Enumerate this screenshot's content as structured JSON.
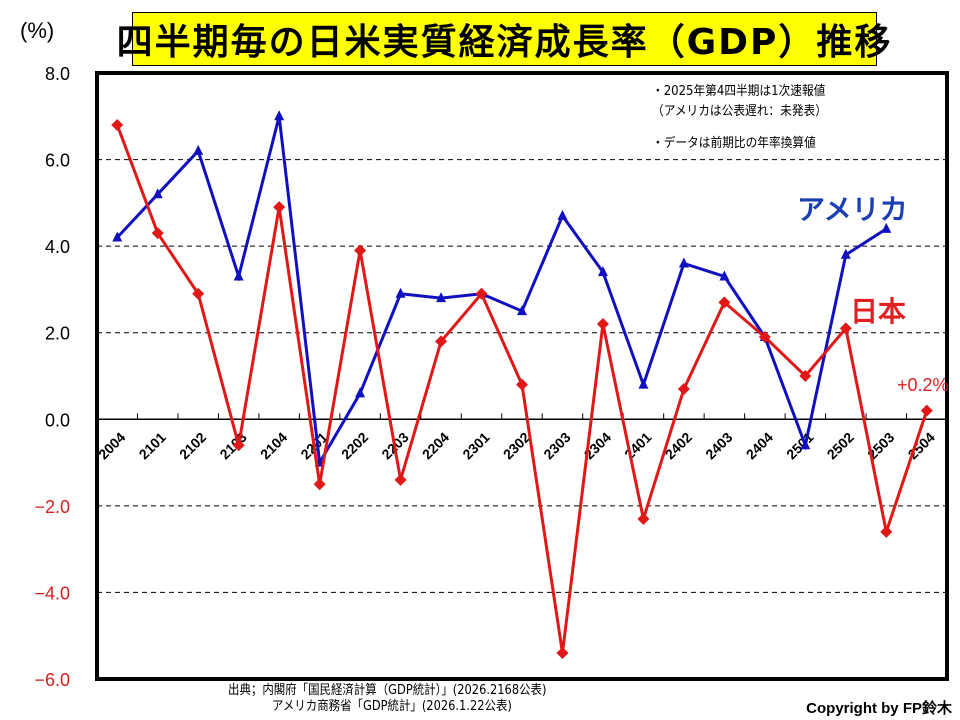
{
  "chart_data": {
    "type": "line",
    "title": "四半期毎の日米実質経済成長率（GDP）推移",
    "ylabel": "(%)",
    "xlabel": "",
    "ylim": [
      -6.0,
      8.0
    ],
    "yticks": [
      "8.0",
      "6.0",
      "4.0",
      "2.0",
      "0.0",
      "−2.0",
      "−4.0",
      "−6.0"
    ],
    "ytick_values": [
      8,
      6,
      4,
      2,
      0,
      -2,
      -4,
      -6
    ],
    "grid": "horizontal-dashed",
    "categories": [
      "2004",
      "2101",
      "2102",
      "2103",
      "2104",
      "2201",
      "2202",
      "2203",
      "2204",
      "2301",
      "2302",
      "2303",
      "2304",
      "2401",
      "2402",
      "2403",
      "2404",
      "2501",
      "2502",
      "2503",
      "2504"
    ],
    "series": [
      {
        "name": "アメリカ",
        "color": "#1010c0",
        "marker": "triangle",
        "values": [
          4.2,
          5.2,
          6.2,
          3.3,
          7.0,
          -1.0,
          0.6,
          2.9,
          2.8,
          2.9,
          2.5,
          4.7,
          3.4,
          0.8,
          3.6,
          3.3,
          1.9,
          -0.6,
          3.8,
          4.4,
          null
        ]
      },
      {
        "name": "日本",
        "color": "#e01818",
        "marker": "diamond",
        "values": [
          6.8,
          4.3,
          2.9,
          -0.6,
          4.9,
          -1.5,
          3.9,
          -1.4,
          1.8,
          2.9,
          0.8,
          -5.4,
          2.2,
          -2.3,
          0.7,
          2.7,
          1.9,
          1.0,
          2.1,
          -2.6,
          0.2
        ]
      }
    ],
    "annotations": {
      "last_value": "+0.2%",
      "note1": "・2025年第4四半期は1次速報値",
      "note2": "（アメリカは公表遅れ：未発表）",
      "note3": "・データは前期比の年率換算値"
    },
    "legend": {
      "us": "アメリカ",
      "jp": "日本",
      "placement": "right"
    }
  },
  "footer": {
    "source1": "出典；内閣府「国民経済計算（GDP統計）」(2026.2168公表)",
    "source2": "アメリカ商務省「GDP統計」(2026.1.22公表)",
    "copyright": "Copyright by FP鈴木"
  },
  "colors": {
    "title_bg": "#ffff00",
    "negative_tick": "#d02020",
    "positive_tick": "#000000"
  }
}
